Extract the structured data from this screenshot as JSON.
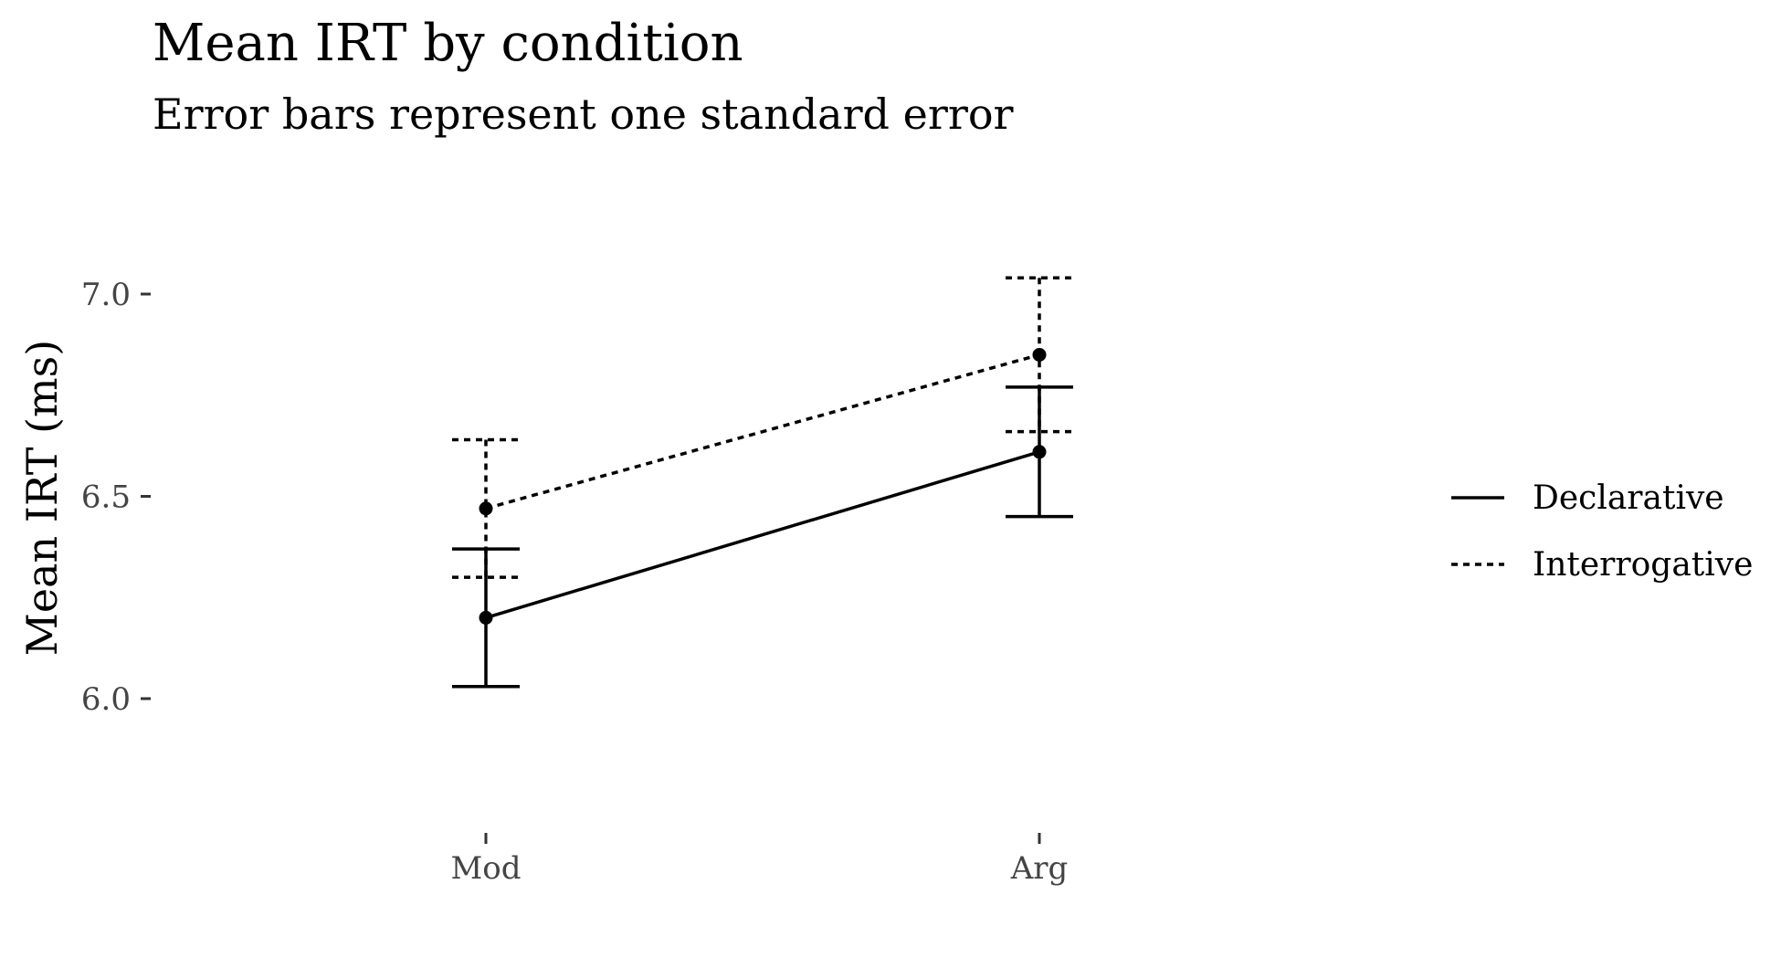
{
  "chart_data": {
    "type": "line",
    "title": "Mean IRT by condition",
    "subtitle": "Error bars represent one standard error",
    "xlabel": "",
    "ylabel": "Mean IRT (ms)",
    "categories": [
      "Mod",
      "Arg"
    ],
    "yticks": [
      "6.0",
      "6.5",
      "7.0"
    ],
    "ylim": [
      5.6,
      7.2
    ],
    "grid": false,
    "legend_position": "right",
    "series": [
      {
        "name": "Declarative",
        "line_style": "solid",
        "values": [
          6.2,
          6.61
        ],
        "error_low": [
          6.03,
          6.45
        ],
        "error_high": [
          6.37,
          6.77
        ]
      },
      {
        "name": "Interrogative",
        "line_style": "dotted",
        "values": [
          6.47,
          6.85
        ],
        "error_low": [
          6.3,
          6.66
        ],
        "error_high": [
          6.64,
          7.04
        ]
      }
    ],
    "colors": {
      "line": "#000000",
      "tick_label": "#444444"
    }
  }
}
